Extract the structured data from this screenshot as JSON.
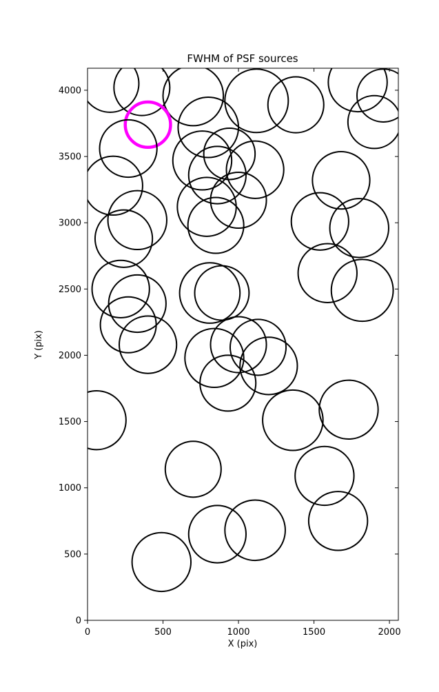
{
  "title": "FWHM of PSF sources",
  "chart_data": {
    "type": "scatter",
    "title": "FWHM of PSF sources",
    "xlabel": "X (pix)",
    "ylabel": "Y (pix)",
    "xlim": [
      0,
      2059
    ],
    "ylim": [
      0,
      4166
    ],
    "xticks": [
      0,
      500,
      1000,
      1500,
      2000
    ],
    "yticks": [
      0,
      500,
      1000,
      1500,
      2000,
      2500,
      3000,
      3500,
      4000
    ],
    "grid": false,
    "legend": "none",
    "marker_style": "open-circle",
    "marker_color": "#000000",
    "highlight_color": "#ff00ff",
    "points": [
      {
        "x": 150,
        "y": 4050,
        "r": 190
      },
      {
        "x": 360,
        "y": 4020,
        "r": 185
      },
      {
        "x": 700,
        "y": 3960,
        "r": 200
      },
      {
        "x": 800,
        "y": 3720,
        "r": 200
      },
      {
        "x": 1120,
        "y": 3920,
        "r": 210
      },
      {
        "x": 1380,
        "y": 3890,
        "r": 185
      },
      {
        "x": 1790,
        "y": 4060,
        "r": 195
      },
      {
        "x": 1960,
        "y": 3960,
        "r": 175
      },
      {
        "x": 1900,
        "y": 3760,
        "r": 175
      },
      {
        "x": 400,
        "y": 3740,
        "r": 150,
        "highlight": true
      },
      {
        "x": 270,
        "y": 3560,
        "r": 190
      },
      {
        "x": 170,
        "y": 3280,
        "r": 195
      },
      {
        "x": 760,
        "y": 3470,
        "r": 195
      },
      {
        "x": 860,
        "y": 3360,
        "r": 190
      },
      {
        "x": 940,
        "y": 3520,
        "r": 170
      },
      {
        "x": 1110,
        "y": 3400,
        "r": 190
      },
      {
        "x": 1000,
        "y": 3170,
        "r": 185
      },
      {
        "x": 790,
        "y": 3120,
        "r": 195
      },
      {
        "x": 850,
        "y": 2980,
        "r": 185
      },
      {
        "x": 330,
        "y": 3020,
        "r": 195
      },
      {
        "x": 240,
        "y": 2880,
        "r": 190
      },
      {
        "x": 1680,
        "y": 3320,
        "r": 190
      },
      {
        "x": 1540,
        "y": 3010,
        "r": 190
      },
      {
        "x": 1800,
        "y": 2960,
        "r": 195
      },
      {
        "x": 1590,
        "y": 2620,
        "r": 195
      },
      {
        "x": 1820,
        "y": 2490,
        "r": 205
      },
      {
        "x": 220,
        "y": 2500,
        "r": 190
      },
      {
        "x": 330,
        "y": 2390,
        "r": 190
      },
      {
        "x": 270,
        "y": 2230,
        "r": 185
      },
      {
        "x": 810,
        "y": 2470,
        "r": 200
      },
      {
        "x": 890,
        "y": 2470,
        "r": 180
      },
      {
        "x": 400,
        "y": 2080,
        "r": 190
      },
      {
        "x": 840,
        "y": 1980,
        "r": 195
      },
      {
        "x": 1000,
        "y": 2080,
        "r": 185
      },
      {
        "x": 1130,
        "y": 2060,
        "r": 185
      },
      {
        "x": 1200,
        "y": 1920,
        "r": 190
      },
      {
        "x": 930,
        "y": 1790,
        "r": 185
      },
      {
        "x": 1360,
        "y": 1510,
        "r": 200
      },
      {
        "x": 1730,
        "y": 1590,
        "r": 195
      },
      {
        "x": 60,
        "y": 1510,
        "r": 195
      },
      {
        "x": 700,
        "y": 1140,
        "r": 185
      },
      {
        "x": 1570,
        "y": 1090,
        "r": 195
      },
      {
        "x": 1660,
        "y": 750,
        "r": 195
      },
      {
        "x": 860,
        "y": 650,
        "r": 190
      },
      {
        "x": 1110,
        "y": 680,
        "r": 200
      },
      {
        "x": 490,
        "y": 440,
        "r": 195
      }
    ]
  }
}
